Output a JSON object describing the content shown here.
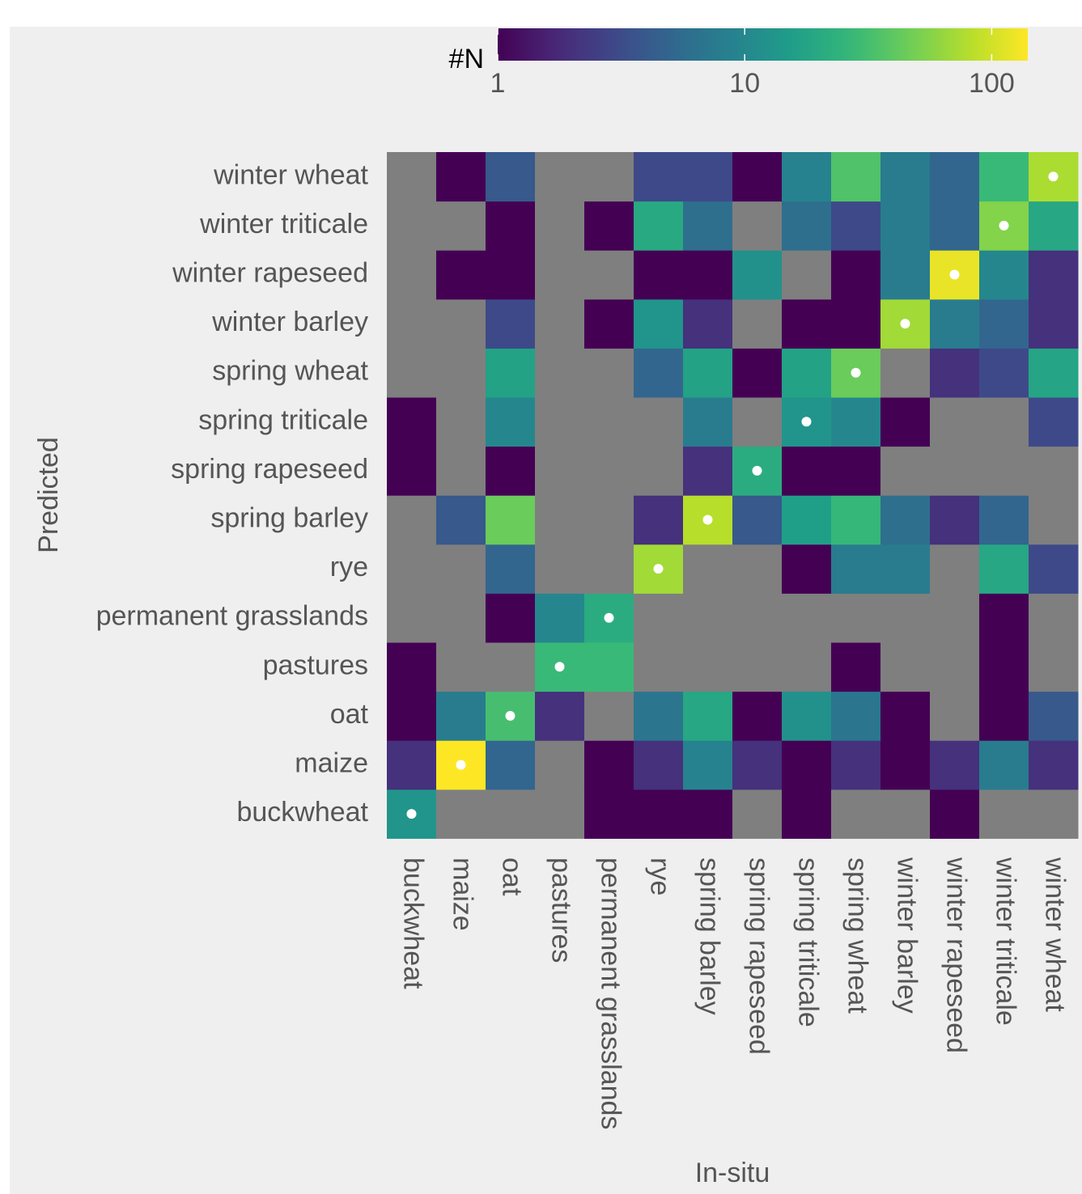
{
  "chart_data": {
    "type": "heatmap",
    "x_label": "In-situ",
    "y_label": "Predicted",
    "x": [
      "buckwheat",
      "maize",
      "oat",
      "pastures",
      "permanent grasslands",
      "rye",
      "spring barley",
      "spring rapeseed",
      "spring triticale",
      "spring wheat",
      "winter barley",
      "winter rapeseed",
      "winter triticale",
      "winter wheat"
    ],
    "y": [
      "buckwheat",
      "maize",
      "oat",
      "pastures",
      "permanent grasslands",
      "rye",
      "spring barley",
      "spring rapeseed",
      "spring triticale",
      "spring wheat",
      "winter barley",
      "winter rapeseed",
      "winter triticale",
      "winter wheat"
    ],
    "z": [
      [
        13,
        null,
        null,
        null,
        1,
        1,
        1,
        null,
        1,
        null,
        null,
        1,
        null,
        null
      ],
      [
        2,
        140,
        5,
        null,
        1,
        2,
        9,
        2,
        1,
        2,
        1,
        2,
        8,
        2
      ],
      [
        1,
        8,
        32,
        2,
        null,
        7,
        19,
        1,
        12,
        7,
        1,
        null,
        1,
        4
      ],
      [
        1,
        null,
        null,
        28,
        28,
        null,
        null,
        null,
        null,
        1,
        null,
        null,
        1,
        null
      ],
      [
        null,
        null,
        1,
        10,
        21,
        null,
        null,
        null,
        null,
        null,
        null,
        null,
        1,
        null
      ],
      [
        null,
        null,
        5,
        null,
        null,
        70,
        null,
        null,
        1,
        8,
        8,
        null,
        19,
        3
      ],
      [
        null,
        4,
        45,
        null,
        null,
        2,
        82,
        4,
        16,
        27,
        6,
        2,
        5,
        null
      ],
      [
        1,
        null,
        1,
        null,
        null,
        null,
        2,
        21,
        1,
        1,
        null,
        null,
        null,
        null
      ],
      [
        1,
        null,
        10,
        null,
        null,
        null,
        8,
        null,
        13,
        10,
        1,
        null,
        null,
        3
      ],
      [
        null,
        null,
        17,
        null,
        null,
        5,
        17,
        1,
        17,
        45,
        null,
        2,
        3,
        18
      ],
      [
        null,
        null,
        3,
        null,
        1,
        13,
        2,
        null,
        1,
        1,
        70,
        8,
        5,
        2
      ],
      [
        null,
        1,
        1,
        null,
        null,
        1,
        1,
        12,
        null,
        1,
        8,
        120,
        10,
        2
      ],
      [
        null,
        null,
        1,
        null,
        1,
        20,
        6,
        null,
        6,
        3,
        8,
        5,
        55,
        19
      ],
      [
        null,
        1,
        4,
        null,
        null,
        3,
        3,
        1,
        9,
        35,
        8,
        5,
        28,
        75
      ]
    ],
    "colorbar_title": "#N",
    "colorscale": "viridis",
    "log_scale": true,
    "zlim": [
      1,
      140
    ],
    "zticks": [
      1,
      10,
      100
    ],
    "na_color": "#7f7f7f"
  }
}
